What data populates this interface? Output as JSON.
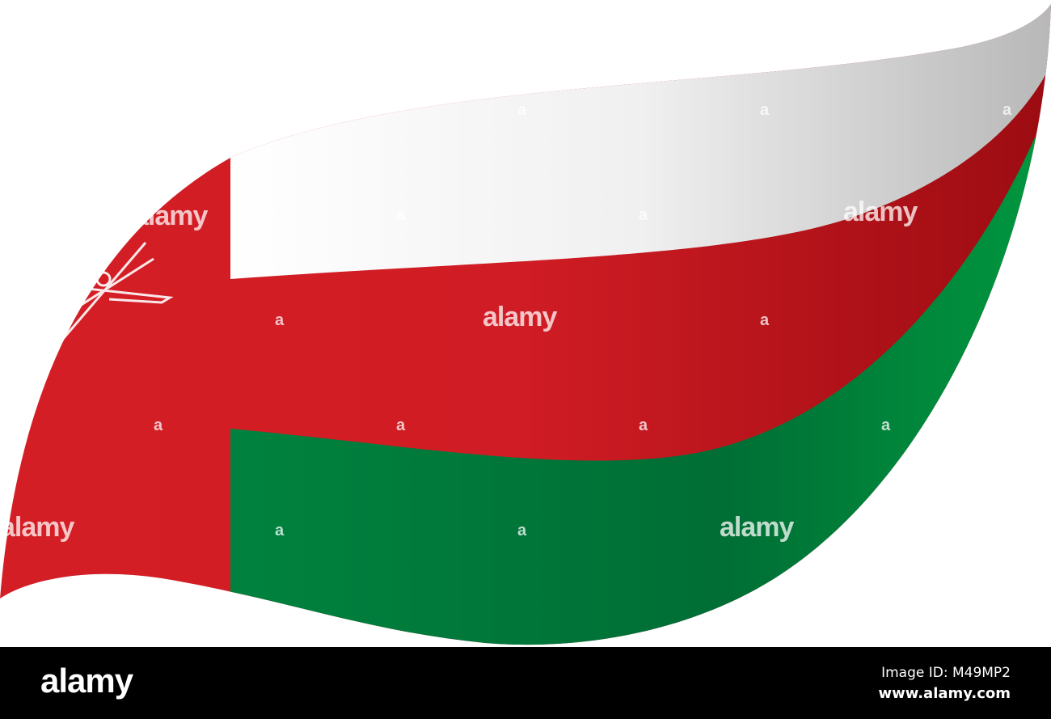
{
  "image": {
    "subject": "waving flag of Oman",
    "colors": {
      "white": "#f2f2f2",
      "red": "#d71f26",
      "green": "#007a3d"
    }
  },
  "watermarks": {
    "word": "alamy",
    "letter": "a"
  },
  "footer": {
    "logo": "alamy",
    "image_id": "Image ID: M49MP2",
    "url": "www.alamy.com"
  }
}
